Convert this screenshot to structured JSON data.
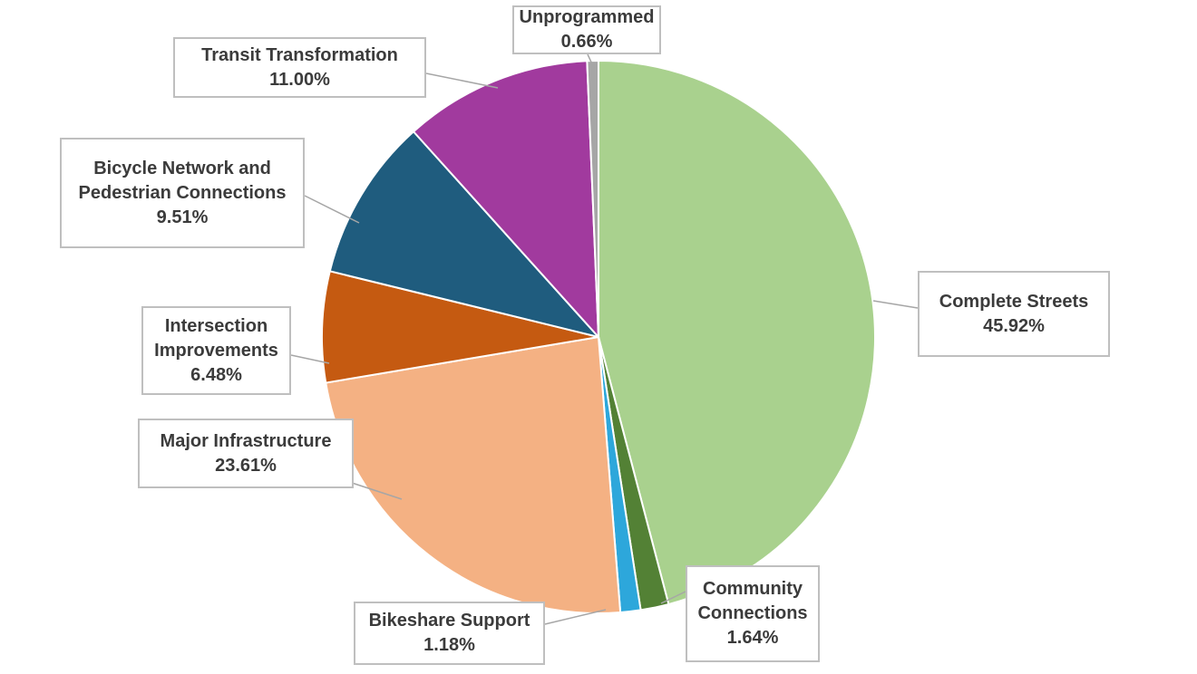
{
  "chart_data": {
    "type": "pie",
    "title": "",
    "start_angle": "top",
    "direction": "clockwise",
    "legend": "none",
    "label_style": "callout-boxes-with-leader-lines",
    "slices": [
      {
        "label": "Complete Streets",
        "label_lines": [
          "Complete Streets"
        ],
        "value": 45.92,
        "percent_label": "45.92%",
        "color": "#a9d18e"
      },
      {
        "label": "Community Connections",
        "label_lines": [
          "Community",
          "Connections"
        ],
        "value": 1.64,
        "percent_label": "1.64%",
        "color": "#538135"
      },
      {
        "label": "Bikeshare Support",
        "label_lines": [
          "Bikeshare Support"
        ],
        "value": 1.18,
        "percent_label": "1.18%",
        "color": "#2da7db"
      },
      {
        "label": "Major Infrastructure",
        "label_lines": [
          "Major Infrastructure"
        ],
        "value": 23.61,
        "percent_label": "23.61%",
        "color": "#f4b183"
      },
      {
        "label": "Intersection Improvements",
        "label_lines": [
          "Intersection",
          "Improvements"
        ],
        "value": 6.48,
        "percent_label": "6.48%",
        "color": "#c55a11"
      },
      {
        "label": "Bicycle Network and Pedestrian Connections",
        "label_lines": [
          "Bicycle Network and",
          "Pedestrian Connections"
        ],
        "value": 9.51,
        "percent_label": "9.51%",
        "color": "#1f5c7e"
      },
      {
        "label": "Transit Transformation",
        "label_lines": [
          "Transit Transformation"
        ],
        "value": 11.0,
        "percent_label": "11.00%",
        "color": "#a13a9e"
      },
      {
        "label": "Unprogrammed",
        "label_lines": [
          "Unprogrammed"
        ],
        "value": 0.66,
        "percent_label": "0.66%",
        "color": "#a6a6a6"
      }
    ]
  },
  "style": {
    "slice_border_color": "#ffffff",
    "callout_border_color": "#bfbfbf",
    "leader_line_color": "#a6a6a6",
    "text_color": "#3b3b3b",
    "background": "#ffffff"
  }
}
